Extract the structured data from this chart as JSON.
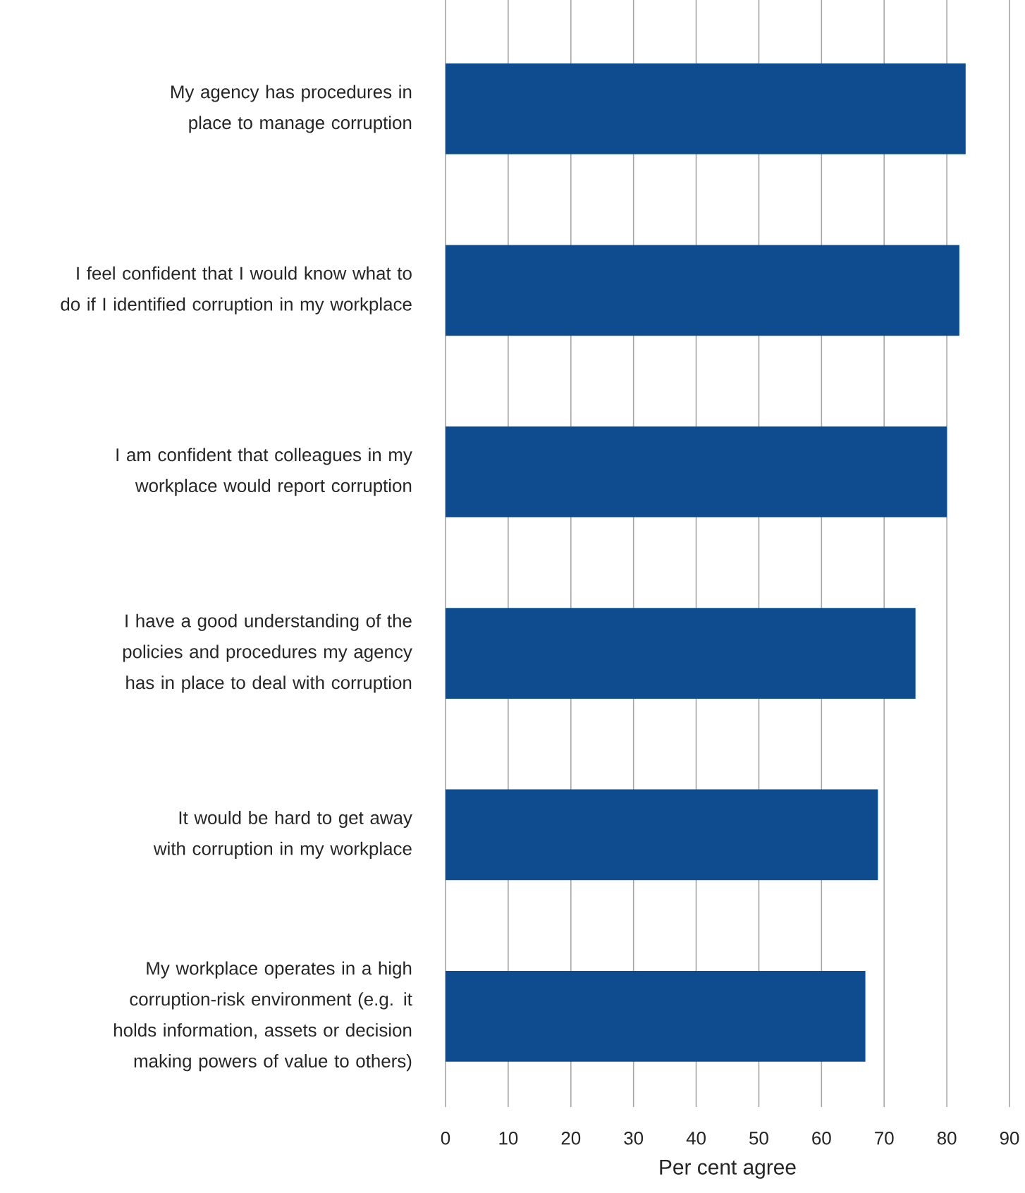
{
  "chart_data": {
    "type": "bar",
    "orientation": "horizontal",
    "xlabel": "Per cent agree",
    "categories": [
      "My agency has procedures in place to manage corruption",
      "I feel confident that I would know what to do if I identified corruption in my workplace",
      "I am confident that colleagues in my workplace would report corruption",
      "I have a good understanding of the policies and procedures my agency has in place to deal with corruption",
      "It would be hard to get away with corruption in my workplace",
      "My workplace operates in a high corruption-risk environment (e.g. it holds information, assets or decision making powers of value to others)"
    ],
    "values": [
      83,
      82,
      80,
      75,
      69,
      67
    ],
    "color": "#0e4c8f",
    "xlim": [
      0,
      90
    ],
    "xticks": [
      0,
      10,
      20,
      30,
      40,
      50,
      60,
      70,
      80,
      90
    ],
    "grid": "x"
  }
}
